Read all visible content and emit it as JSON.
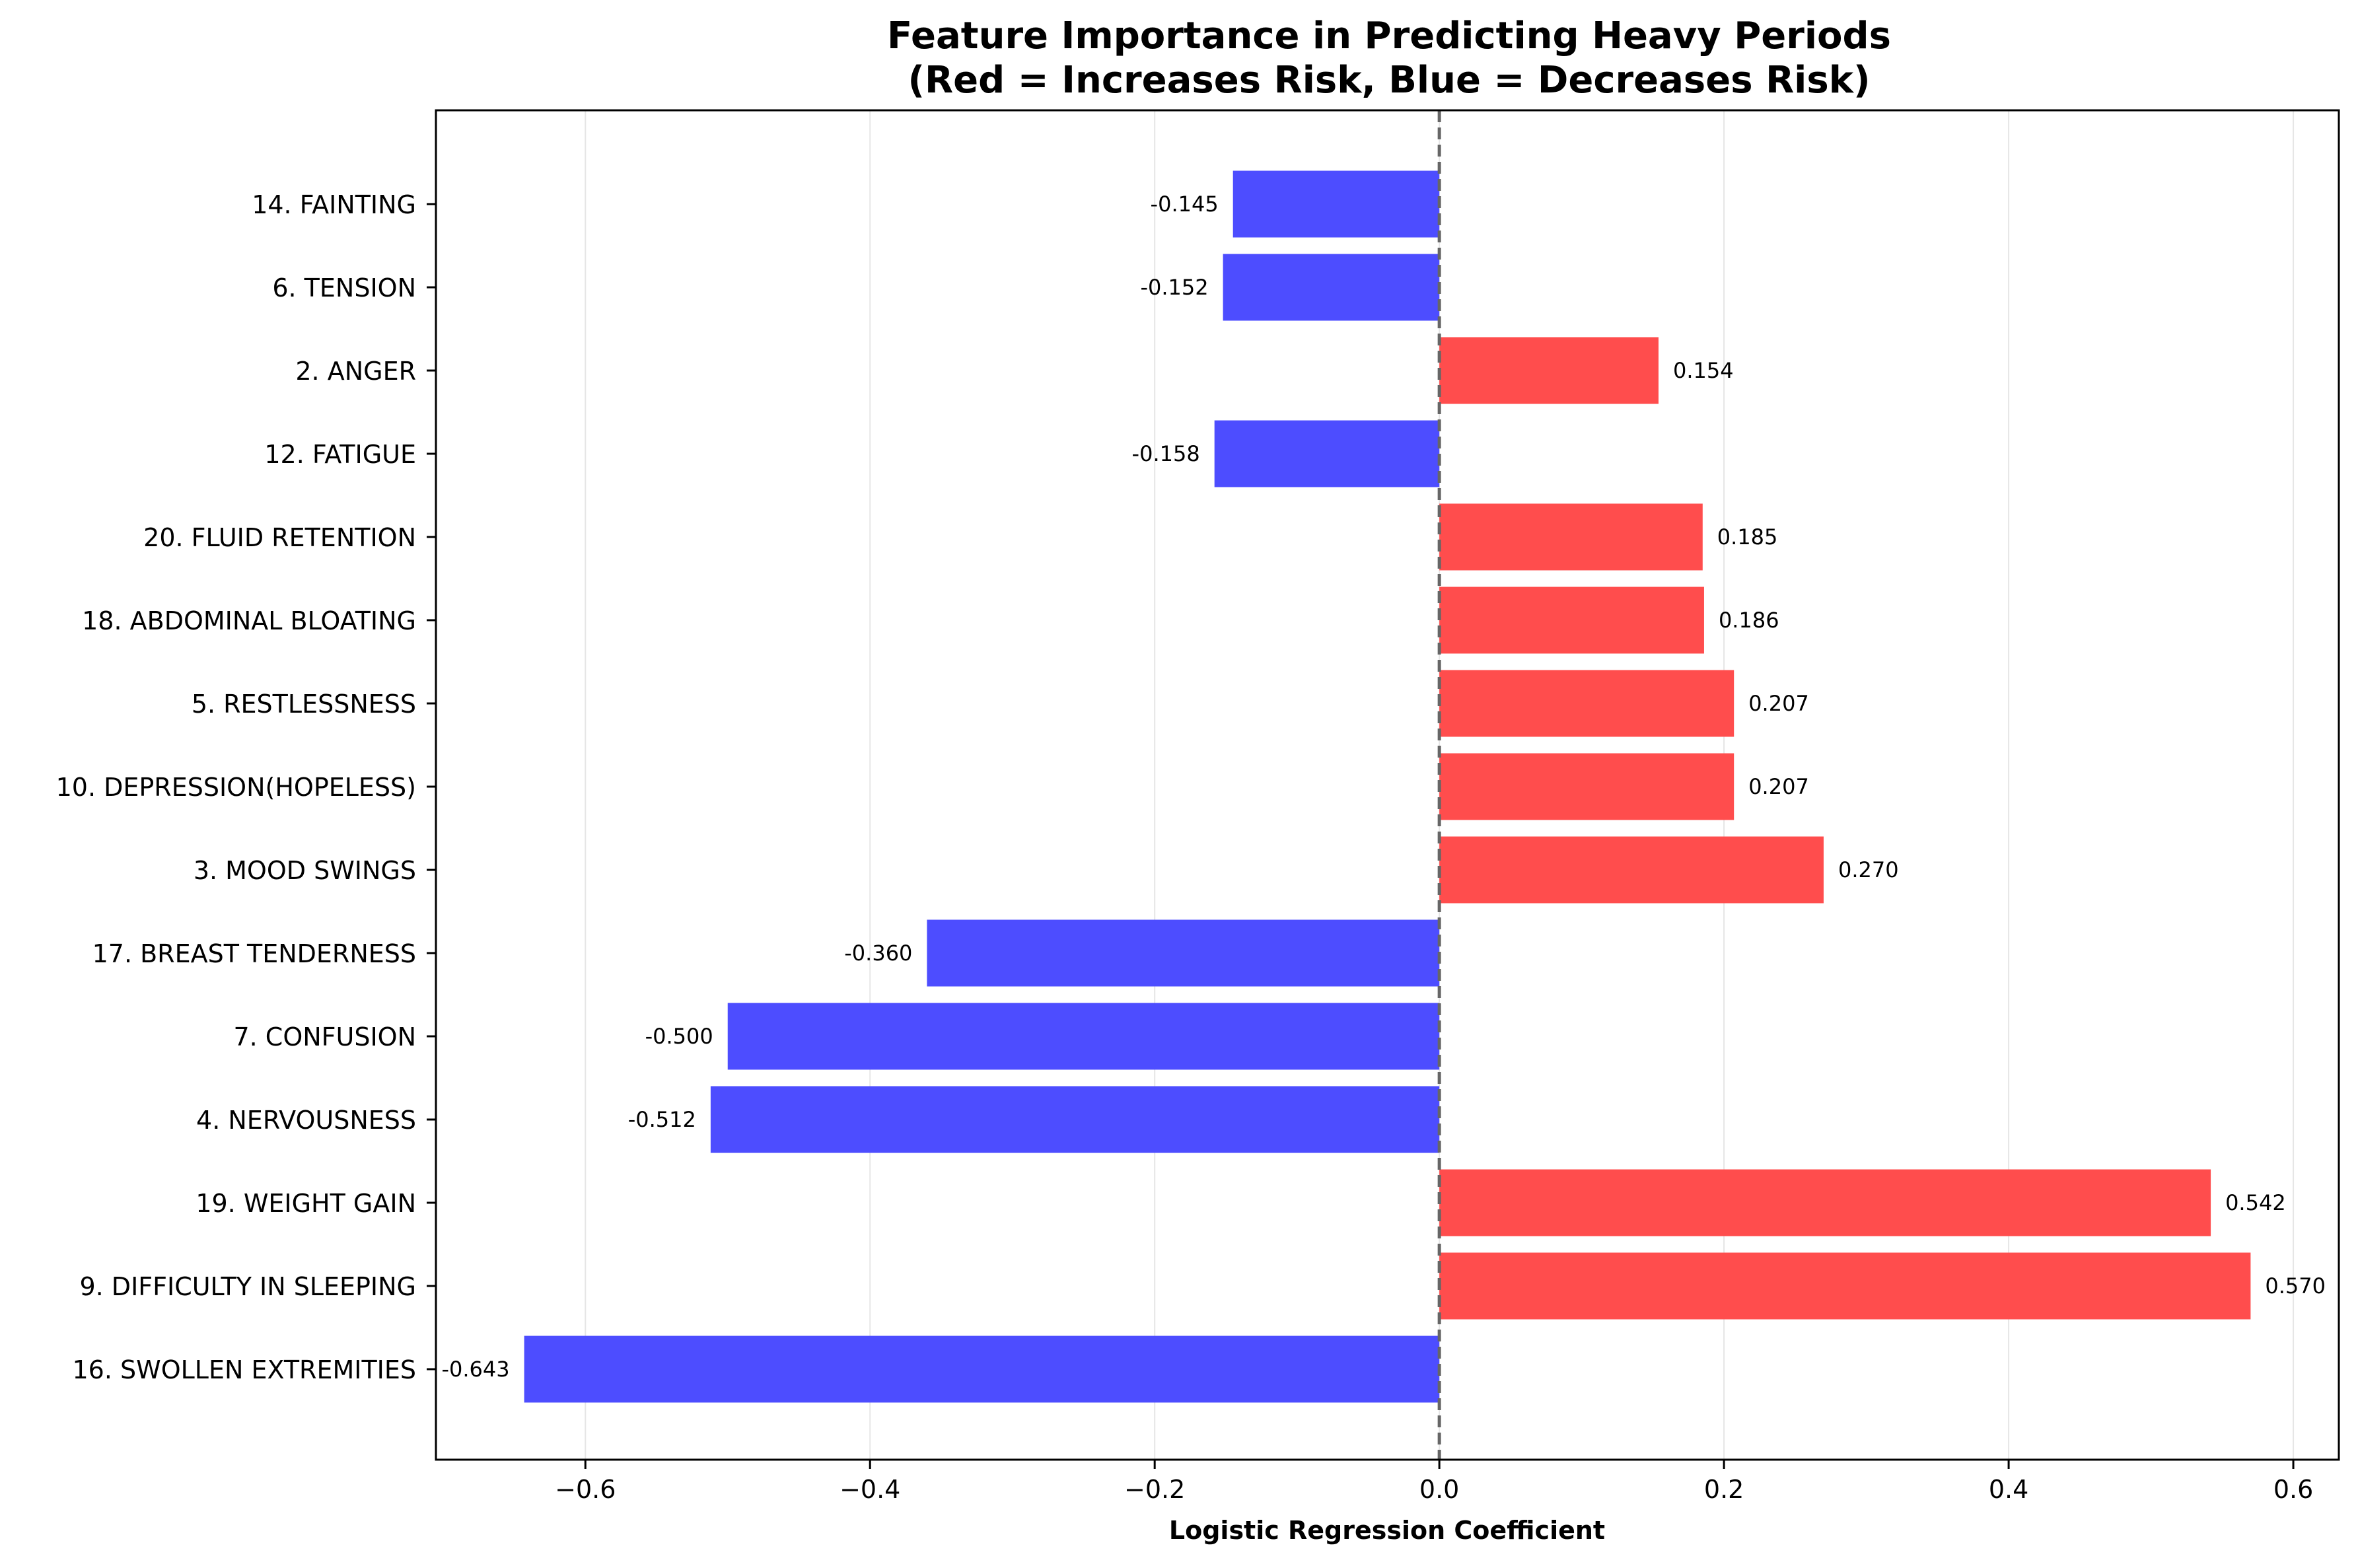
{
  "chart_data": {
    "type": "bar",
    "orientation": "horizontal",
    "title": "Feature Importance in Predicting Heavy Periods",
    "subtitle": "(Red = Increases Risk, Blue = Decreases Risk)",
    "xlabel": "Logistic Regression Coefficient",
    "ylabel": "",
    "xlim": [
      -0.705,
      0.632
    ],
    "xticks": [
      -0.6,
      -0.4,
      -0.2,
      0.0,
      0.2,
      0.4,
      0.6
    ],
    "xtick_labels": [
      "−0.6",
      "−0.4",
      "−0.2",
      "0.0",
      "0.2",
      "0.4",
      "0.6"
    ],
    "grid": "vertical",
    "zero_line": "dashed",
    "colors": {
      "positive": "#ff4d4d",
      "negative": "#4d4dff",
      "zero_line": "#666666",
      "grid": "#e6e6e6"
    },
    "categories": [
      "14. FAINTING",
      "6. TENSION",
      "2. ANGER",
      "12. FATIGUE",
      "20. FLUID RETENTION",
      "18. ABDOMINAL BLOATING",
      "5. RESTLESSNESS",
      "10. DEPRESSION(HOPELESS)",
      "3. MOOD SWINGS",
      "17. BREAST TENDERNESS",
      "7. CONFUSION",
      "4. NERVOUSNESS",
      "19. WEIGHT GAIN",
      "9. DIFFICULTY IN SLEEPING",
      "16. SWOLLEN EXTREMITIES"
    ],
    "values": [
      -0.145,
      -0.152,
      0.154,
      -0.158,
      0.185,
      0.186,
      0.207,
      0.207,
      0.27,
      -0.36,
      -0.5,
      -0.512,
      0.542,
      0.57,
      -0.643
    ],
    "value_labels": [
      "-0.145",
      "-0.152",
      "0.154",
      "-0.158",
      "0.185",
      "0.186",
      "0.207",
      "0.207",
      "0.270",
      "-0.360",
      "-0.500",
      "-0.512",
      "0.542",
      "0.570",
      "-0.643"
    ]
  }
}
